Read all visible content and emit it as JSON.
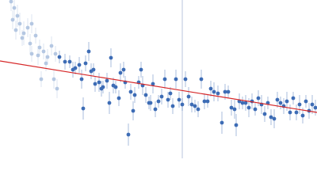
{
  "chart_data": {
    "type": "scatter",
    "xlim": [
      0,
      400
    ],
    "ylim": [
      0,
      200
    ],
    "series": [
      {
        "color": "#b4c7e2",
        "x": [
          14,
          18,
          22,
          16,
          25,
          20,
          30,
          35,
          40,
          28,
          45,
          38,
          50,
          55,
          48,
          60,
          65,
          70,
          52,
          68,
          72,
          40,
          58
        ],
        "values": [
          198,
          190,
          180,
          175,
          170,
          162,
          158,
          165,
          170,
          152,
          155,
          145,
          140,
          135,
          130,
          128,
          142,
          132,
          100,
          100,
          88,
          132,
          120
        ],
        "errors": [
          12,
          15,
          14,
          12,
          14,
          12,
          15,
          12,
          12,
          10,
          10,
          12,
          10,
          10,
          12,
          10,
          12,
          10,
          10,
          12,
          12,
          10,
          10
        ]
      },
      {
        "color": "#3d6cb5",
        "x": [
          75,
          82,
          88,
          92,
          95,
          100,
          103,
          105,
          108,
          112,
          115,
          118,
          120,
          125,
          128,
          130,
          135,
          138,
          140,
          143,
          146,
          150,
          152,
          156,
          158,
          162,
          165,
          168,
          170,
          175,
          178,
          180,
          184,
          188,
          190,
          193,
          196,
          200,
          204,
          208,
          212,
          215,
          218,
          222,
          226,
          230,
          234,
          238,
          242,
          246,
          250,
          254,
          258,
          262,
          266,
          270,
          275,
          280,
          284,
          288,
          292,
          296,
          298,
          302,
          306,
          310,
          314,
          318,
          322,
          326,
          330,
          334,
          338,
          342,
          346,
          350,
          354,
          358,
          362,
          366,
          370,
          374,
          378,
          382,
          386,
          390,
          394,
          398
        ],
        "values": [
          128,
          122,
          122,
          112,
          114,
          118,
          100,
          63,
          120,
          135,
          110,
          112,
          94,
          96,
          88,
          90,
          98,
          70,
          127,
          92,
          90,
          76,
          108,
          112,
          96,
          30,
          84,
          60,
          80,
          96,
          112,
          92,
          80,
          70,
          70,
          94,
          62,
          72,
          78,
          100,
          74,
          82,
          66,
          100,
          74,
          68,
          100,
          78,
          68,
          66,
          62,
          100,
          72,
          72,
          88,
          84,
          82,
          45,
          84,
          84,
          64,
          62,
          42,
          72,
          70,
          70,
          64,
          72,
          62,
          76,
          68,
          56,
          70,
          52,
          50,
          74,
          70,
          66,
          72,
          58,
          76,
          58,
          68,
          54,
          72,
          60,
          68,
          64
        ],
        "errors": [
          8,
          10,
          8,
          10,
          8,
          10,
          12,
          14,
          10,
          12,
          10,
          8,
          10,
          12,
          10,
          8,
          10,
          14,
          12,
          10,
          8,
          10,
          12,
          10,
          8,
          14,
          10,
          12,
          10,
          8,
          10,
          12,
          10,
          8,
          10,
          12,
          10,
          8,
          10,
          12,
          10,
          8,
          10,
          12,
          10,
          8,
          10,
          12,
          10,
          8,
          10,
          12,
          10,
          8,
          10,
          12,
          10,
          14,
          10,
          8,
          10,
          12,
          14,
          10,
          8,
          10,
          12,
          10,
          8,
          10,
          12,
          10,
          8,
          10,
          12,
          10,
          8,
          10,
          12,
          10,
          8,
          10,
          12,
          10,
          8,
          10,
          12,
          10
        ]
      }
    ],
    "fit": {
      "color": "#d62728",
      "x": [
        0,
        400
      ],
      "values": [
        123,
        58
      ]
    },
    "vline": {
      "x": 230,
      "color": "#b9c6dd"
    }
  }
}
